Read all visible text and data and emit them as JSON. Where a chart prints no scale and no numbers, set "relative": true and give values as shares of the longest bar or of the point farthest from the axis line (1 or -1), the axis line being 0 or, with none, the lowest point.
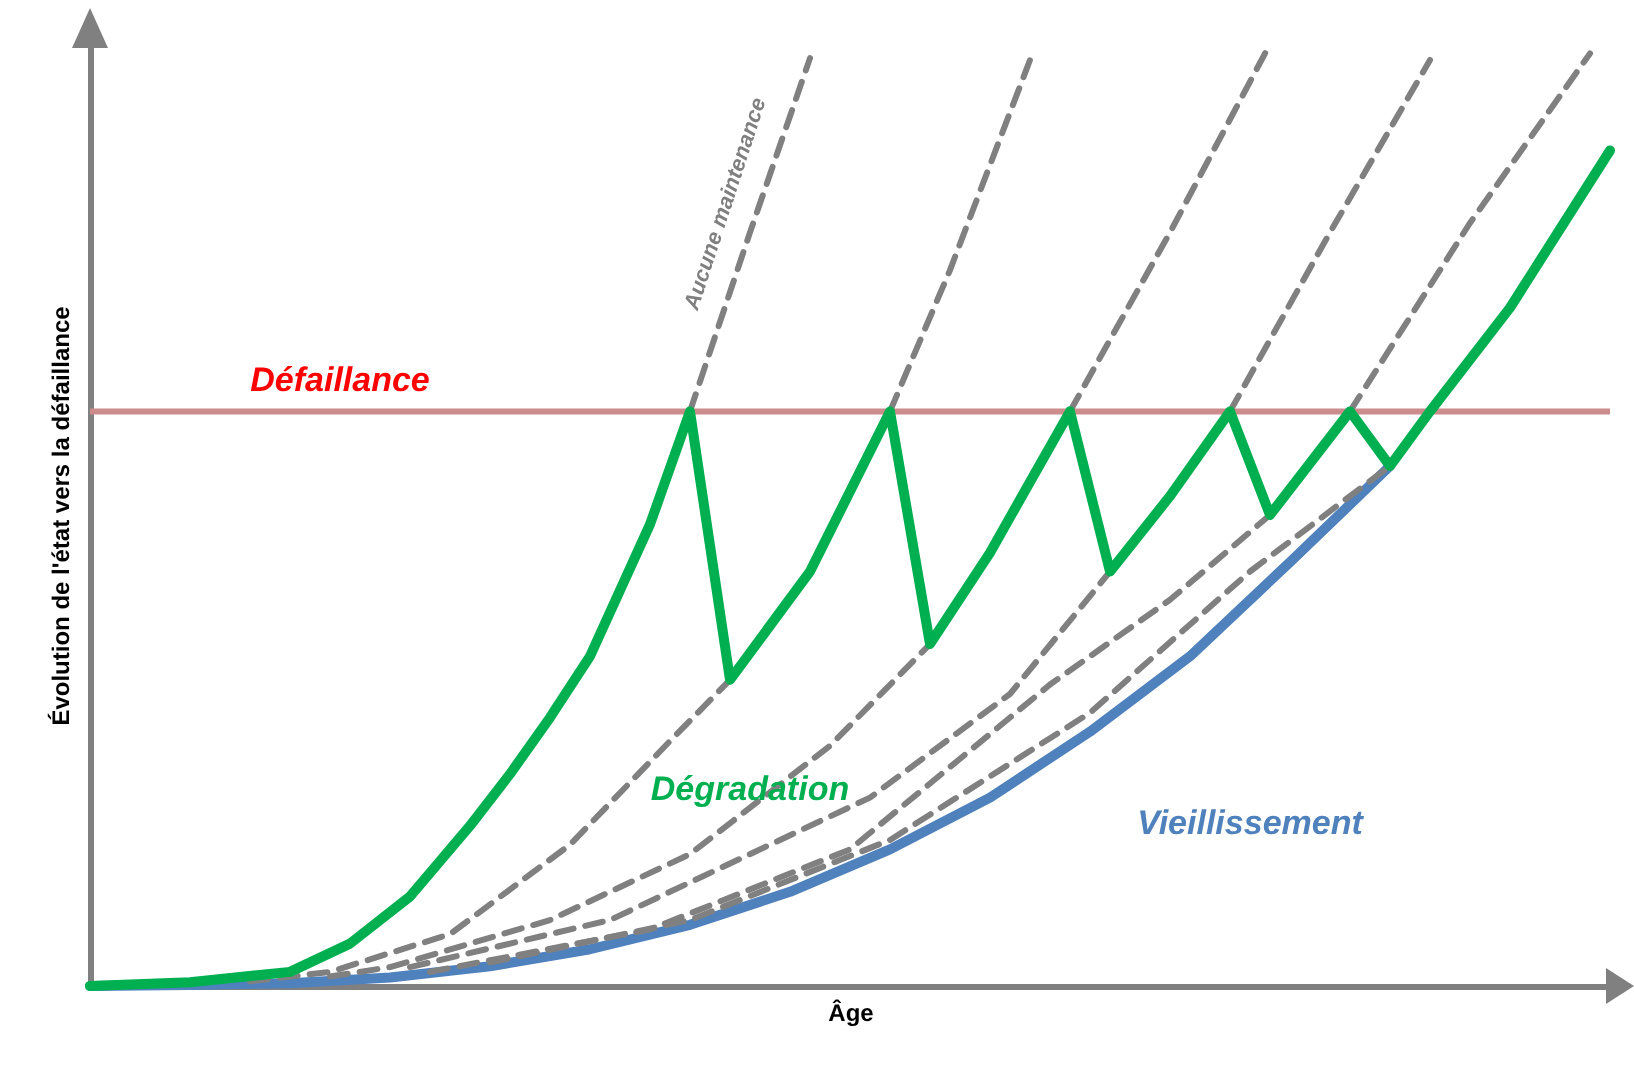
{
  "chart_data": {
    "type": "line",
    "relative": true,
    "xlabel": "Âge",
    "ylabel": "Évolution de l'état vers la défaillance",
    "categories": [
      null,
      null,
      null,
      null,
      null,
      null,
      null,
      null,
      null,
      null,
      null,
      null,
      null,
      null,
      null,
      null,
      null,
      null,
      null,
      null,
      null,
      null,
      null,
      null,
      null,
      null,
      null,
      null,
      null,
      null,
      null,
      null,
      null,
      null,
      null,
      null,
      null,
      null,
      null,
      null,
      null,
      null,
      null,
      null,
      null,
      null,
      null,
      null,
      null,
      null,
      null,
      null,
      null,
      null,
      null,
      null,
      null,
      null,
      null,
      null,
      null,
      null,
      null,
      null,
      null,
      null,
      null,
      null,
      null,
      null,
      null,
      null,
      null,
      null,
      null,
      null,
      null
    ],
    "series": [
      {
        "name": "Dégradation",
        "color": "#00b050",
        "line_style": "solid",
        "values": [
          0,
          null,
          null,
          null,
          null,
          0.004,
          null,
          null,
          null,
          null,
          0.015,
          null,
          null,
          0.045,
          null,
          null,
          0.095,
          null,
          null,
          0.17,
          null,
          0.225,
          null,
          0.285,
          null,
          0.35,
          null,
          null,
          0.49,
          null,
          0.61,
          null,
          0.325,
          null,
          null,
          null,
          0.44,
          null,
          null,
          null,
          0.61,
          null,
          0.363,
          null,
          null,
          0.46,
          null,
          null,
          null,
          0.61,
          null,
          0.44,
          null,
          null,
          0.52,
          null,
          null,
          0.61,
          null,
          0.5,
          null,
          null,
          null,
          0.61,
          null,
          0.552,
          null,
          0.61,
          null,
          null,
          null,
          0.72,
          null,
          null,
          null,
          null,
          0.887
        ]
      },
      {
        "name": "Vieillissement",
        "color": "#4f81bd",
        "line_style": "solid",
        "values": [
          0,
          null,
          null,
          null,
          null,
          0.001,
          null,
          null,
          null,
          null,
          0.003,
          null,
          null,
          null,
          null,
          0.009,
          null,
          null,
          null,
          null,
          0.021,
          null,
          null,
          null,
          null,
          0.039,
          null,
          null,
          null,
          null,
          0.065,
          null,
          null,
          null,
          null,
          0.1,
          null,
          null,
          null,
          null,
          0.145,
          null,
          null,
          null,
          null,
          0.2,
          null,
          null,
          null,
          null,
          0.27,
          null,
          null,
          null,
          null,
          0.35,
          null,
          null,
          null,
          null,
          0.45,
          null,
          null,
          null,
          null,
          0.552,
          null,
          null,
          null,
          null,
          null,
          null,
          null,
          null,
          null,
          null,
          null
        ]
      },
      {
        "color": "#808080",
        "line_style": "dashed",
        "values": [
          null,
          null,
          null,
          null,
          null,
          null,
          null,
          null,
          0.005,
          null,
          null,
          null,
          0.015,
          null,
          null,
          null,
          null,
          null,
          0.055,
          null,
          null,
          null,
          null,
          null,
          0.15,
          null,
          null,
          null,
          null,
          0.26,
          null,
          null,
          0.325,
          null,
          null,
          null,
          null,
          null,
          null,
          null,
          null,
          null,
          null,
          null,
          null,
          null,
          null,
          null,
          null,
          null,
          null,
          null,
          null,
          null,
          null,
          null,
          null,
          null,
          null,
          null,
          null,
          null,
          null,
          null,
          null,
          null,
          null,
          null,
          null,
          null,
          null,
          null,
          null,
          null,
          null,
          null,
          null
        ]
      },
      {
        "color": "#808080",
        "line_style": "dashed",
        "values": [
          null,
          null,
          null,
          null,
          null,
          null,
          null,
          null,
          null,
          null,
          null,
          null,
          0.01,
          null,
          null,
          0.02,
          null,
          null,
          null,
          null,
          null,
          null,
          null,
          0.07,
          null,
          null,
          null,
          null,
          null,
          null,
          0.14,
          null,
          null,
          null,
          null,
          null,
          null,
          0.255,
          null,
          null,
          null,
          null,
          0.363,
          null,
          null,
          null,
          null,
          null,
          null,
          null,
          null,
          null,
          null,
          null,
          null,
          null,
          null,
          null,
          null,
          null,
          null,
          null,
          null,
          null,
          null,
          null,
          null,
          null,
          null,
          null,
          null,
          null,
          null,
          null,
          null,
          null,
          null
        ]
      },
      {
        "color": "#808080",
        "line_style": "dashed",
        "values": [
          null,
          null,
          null,
          null,
          null,
          null,
          null,
          null,
          null,
          null,
          null,
          null,
          null,
          null,
          null,
          null,
          0.02,
          null,
          null,
          null,
          null,
          null,
          null,
          null,
          null,
          null,
          0.07,
          null,
          null,
          null,
          null,
          null,
          null,
          null,
          null,
          null,
          null,
          null,
          null,
          0.2,
          null,
          null,
          null,
          null,
          null,
          null,
          0.31,
          null,
          null,
          null,
          null,
          0.44,
          null,
          null,
          null,
          null,
          null,
          null,
          null,
          null,
          null,
          null,
          null,
          null,
          null,
          null,
          null,
          null,
          null,
          null,
          null,
          null,
          null,
          null,
          null,
          null,
          null
        ]
      },
      {
        "color": "#808080",
        "line_style": "dashed",
        "values": [
          null,
          null,
          null,
          null,
          null,
          null,
          null,
          null,
          null,
          null,
          null,
          null,
          null,
          null,
          null,
          null,
          null,
          0.015,
          null,
          null,
          null,
          null,
          null,
          null,
          null,
          null,
          null,
          null,
          0.06,
          null,
          null,
          null,
          null,
          null,
          null,
          null,
          null,
          null,
          0.145,
          null,
          null,
          null,
          null,
          null,
          null,
          null,
          null,
          null,
          0.32,
          null,
          null,
          null,
          null,
          null,
          0.41,
          null,
          null,
          null,
          null,
          0.5,
          null,
          null,
          null,
          null,
          null,
          null,
          null,
          null,
          null,
          null,
          null,
          null,
          null,
          null,
          null,
          null,
          null
        ]
      },
      {
        "color": "#808080",
        "line_style": "dashed",
        "values": [
          null,
          null,
          null,
          null,
          null,
          null,
          null,
          null,
          null,
          null,
          null,
          null,
          null,
          null,
          null,
          null,
          null,
          null,
          null,
          null,
          0.025,
          null,
          null,
          null,
          null,
          null,
          null,
          null,
          null,
          null,
          0.07,
          null,
          null,
          null,
          null,
          null,
          null,
          null,
          null,
          null,
          0.155,
          null,
          null,
          null,
          null,
          null,
          null,
          null,
          null,
          null,
          0.29,
          null,
          null,
          null,
          null,
          null,
          null,
          null,
          0.44,
          null,
          null,
          null,
          null,
          null,
          null,
          0.552,
          null,
          null,
          null,
          null,
          null,
          null,
          null,
          null,
          null,
          null,
          null
        ]
      },
      {
        "color": "#808080",
        "line_style": "dashed",
        "values": [
          null,
          null,
          null,
          null,
          null,
          null,
          null,
          null,
          null,
          null,
          null,
          null,
          null,
          null,
          null,
          null,
          null,
          null,
          null,
          null,
          null,
          null,
          null,
          null,
          null,
          null,
          null,
          null,
          null,
          null,
          0.61,
          null,
          null,
          0.8,
          null,
          null,
          0.985,
          null,
          null,
          null,
          null,
          null,
          null,
          null,
          null,
          null,
          null,
          null,
          null,
          null,
          null,
          null,
          null,
          null,
          null,
          null,
          null,
          null,
          null,
          null,
          null,
          null,
          null,
          null,
          null,
          null,
          null,
          null,
          null,
          null,
          null,
          null,
          null,
          null,
          null,
          null,
          null
        ]
      },
      {
        "color": "#808080",
        "line_style": "dashed",
        "values": [
          null,
          null,
          null,
          null,
          null,
          null,
          null,
          null,
          null,
          null,
          null,
          null,
          null,
          null,
          null,
          null,
          null,
          null,
          null,
          null,
          null,
          null,
          null,
          null,
          null,
          null,
          null,
          null,
          null,
          null,
          null,
          null,
          null,
          null,
          null,
          null,
          null,
          null,
          null,
          null,
          0.61,
          null,
          null,
          0.76,
          null,
          null,
          null,
          0.983,
          null,
          null,
          null,
          null,
          null,
          null,
          null,
          null,
          null,
          null,
          null,
          null,
          null,
          null,
          null,
          null,
          null,
          null,
          null,
          null,
          null,
          null,
          null,
          null,
          null,
          null,
          null,
          null,
          null
        ]
      },
      {
        "color": "#808080",
        "line_style": "dashed",
        "values": [
          null,
          null,
          null,
          null,
          null,
          null,
          null,
          null,
          null,
          null,
          null,
          null,
          null,
          null,
          null,
          null,
          null,
          null,
          null,
          null,
          null,
          null,
          null,
          null,
          null,
          null,
          null,
          null,
          null,
          null,
          null,
          null,
          null,
          null,
          null,
          null,
          null,
          null,
          null,
          null,
          null,
          null,
          null,
          null,
          null,
          null,
          null,
          null,
          null,
          0.61,
          null,
          null,
          null,
          null,
          0.8,
          null,
          null,
          null,
          null,
          1,
          null,
          null,
          null,
          null,
          null,
          null,
          null,
          null,
          null,
          null,
          null,
          null,
          null,
          null,
          null,
          null,
          null
        ]
      },
      {
        "color": "#808080",
        "line_style": "dashed",
        "values": [
          null,
          null,
          null,
          null,
          null,
          null,
          null,
          null,
          null,
          null,
          null,
          null,
          null,
          null,
          null,
          null,
          null,
          null,
          null,
          null,
          null,
          null,
          null,
          null,
          null,
          null,
          null,
          null,
          null,
          null,
          null,
          null,
          null,
          null,
          null,
          null,
          null,
          null,
          null,
          null,
          null,
          null,
          null,
          null,
          null,
          null,
          null,
          null,
          null,
          null,
          null,
          null,
          null,
          null,
          null,
          null,
          null,
          0.61,
          null,
          null,
          null,
          null,
          0.8,
          null,
          null,
          null,
          null,
          0.983,
          null,
          null,
          null,
          null,
          null,
          null,
          null,
          null,
          null
        ]
      },
      {
        "color": "#808080",
        "line_style": "dashed",
        "values": [
          null,
          null,
          null,
          null,
          null,
          null,
          null,
          null,
          null,
          null,
          null,
          null,
          null,
          null,
          null,
          null,
          null,
          null,
          null,
          null,
          null,
          null,
          null,
          null,
          null,
          null,
          null,
          null,
          null,
          null,
          null,
          null,
          null,
          null,
          null,
          null,
          null,
          null,
          null,
          null,
          null,
          null,
          null,
          null,
          null,
          null,
          null,
          null,
          null,
          null,
          null,
          null,
          null,
          null,
          null,
          null,
          null,
          null,
          null,
          null,
          null,
          null,
          null,
          0.61,
          null,
          null,
          null,
          null,
          null,
          0.81,
          null,
          null,
          null,
          null,
          null,
          0.99,
          null
        ]
      }
    ],
    "ref_lines": [
      {
        "axis": "y",
        "value": 0.61,
        "label": "Défaillance",
        "color": "#cc8c8c"
      }
    ],
    "annotations": [
      "Aucune maintenance"
    ]
  }
}
